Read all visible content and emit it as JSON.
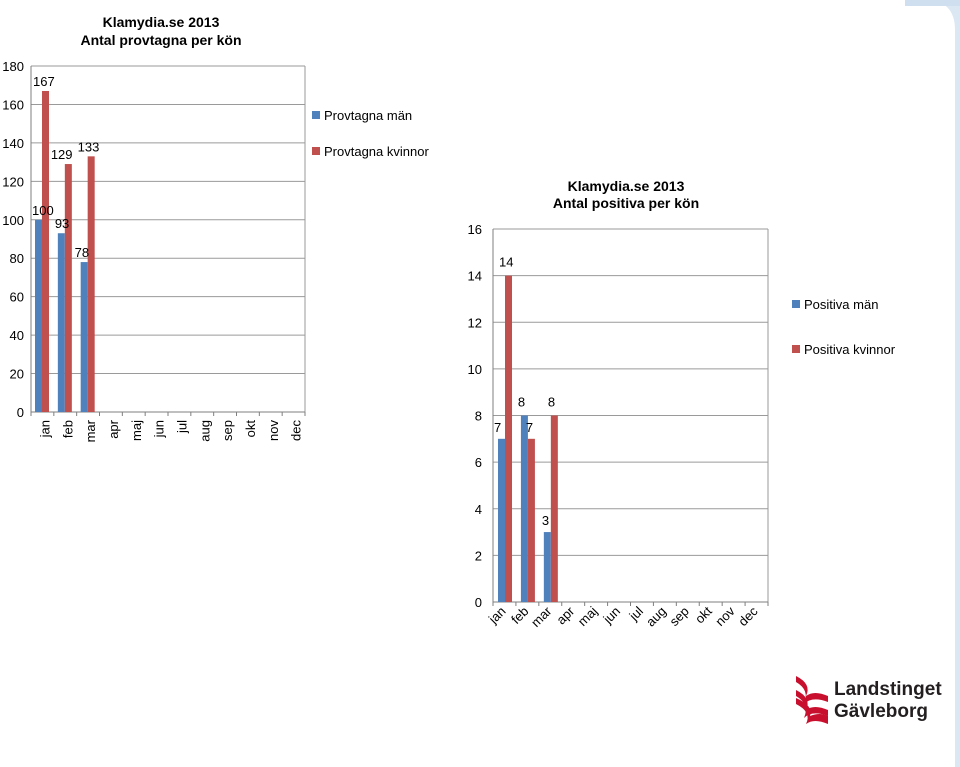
{
  "chart_data": [
    {
      "type": "bar",
      "title": "Klamydia.se 2013",
      "subtitle": "Antal provtagna per kön",
      "categories": [
        "jan",
        "feb",
        "mar",
        "apr",
        "maj",
        "jun",
        "jul",
        "aug",
        "sep",
        "okt",
        "nov",
        "dec"
      ],
      "series": [
        {
          "name": "Provtagna män",
          "color": "#4f81bd",
          "values": [
            100,
            93,
            78,
            null,
            null,
            null,
            null,
            null,
            null,
            null,
            null,
            null
          ]
        },
        {
          "name": "Provtagna kvinnor",
          "color": "#c0504d",
          "values": [
            167,
            129,
            133,
            null,
            null,
            null,
            null,
            null,
            null,
            null,
            null,
            null
          ]
        }
      ],
      "ylim": [
        0,
        180
      ],
      "yticks": [
        0,
        20,
        40,
        60,
        80,
        100,
        120,
        140,
        160,
        180
      ],
      "grid": true,
      "legend": "right"
    },
    {
      "type": "bar",
      "title": "Klamydia.se 2013",
      "subtitle": "Antal positiva per kön",
      "categories": [
        "jan",
        "feb",
        "mar",
        "apr",
        "maj",
        "jun",
        "jul",
        "aug",
        "sep",
        "okt",
        "nov",
        "dec"
      ],
      "series": [
        {
          "name": "Positiva män",
          "color": "#4f81bd",
          "values": [
            7,
            8,
            3,
            null,
            null,
            null,
            null,
            null,
            null,
            null,
            null,
            null
          ]
        },
        {
          "name": "Positiva kvinnor",
          "color": "#c0504d",
          "values": [
            14,
            7,
            8,
            null,
            null,
            null,
            null,
            null,
            null,
            null,
            null,
            null
          ]
        }
      ],
      "ylim": [
        0,
        16
      ],
      "yticks": [
        0,
        2,
        4,
        6,
        8,
        10,
        12,
        14,
        16
      ],
      "grid": true,
      "legend": "right"
    }
  ],
  "logo": {
    "line1": "Landstinget",
    "line2": "Gävleborg",
    "color": "#c8102e",
    "text_color": "#231f20"
  },
  "decor": {
    "corner_color": "#dbe7f3"
  }
}
